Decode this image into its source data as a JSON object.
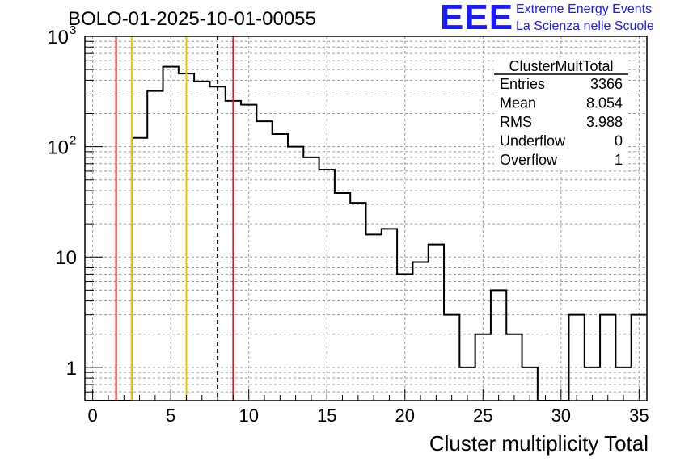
{
  "header": {
    "run_title": "BOLO-01-2025-10-01-00055",
    "logo_text": "EEE",
    "logo_line1": "Extreme Energy Events",
    "logo_line2": "La Scienza nelle Scuole"
  },
  "colors": {
    "histogram": "#000000",
    "red_line": "#e41a1c",
    "yellow_line": "#f5c400",
    "mean_line": "#000000",
    "grid": "#9a9a9a",
    "logo": "#1a1aff"
  },
  "chart_data": {
    "type": "bar",
    "title": "",
    "xlabel": "Cluster multiplicity Total",
    "ylabel": "",
    "log_y": true,
    "grid": true,
    "legend_placement": "top-right",
    "xlim": [
      -0.5,
      35.5
    ],
    "ylim": [
      0.5,
      1000
    ],
    "x_ticks": [
      0,
      5,
      10,
      15,
      20,
      25,
      30,
      35
    ],
    "y_ticks": [
      {
        "value": 1,
        "label": "1"
      },
      {
        "value": 10,
        "label": "10"
      },
      {
        "value": 100,
        "label": "10",
        "sup": "2"
      },
      {
        "value": 1000,
        "label": "10",
        "sup": "3"
      }
    ],
    "bin_width": 1,
    "bin_starts": [
      -0.5,
      0.5,
      1.5,
      2.5,
      3.5,
      4.5,
      5.5,
      6.5,
      7.5,
      8.5,
      9.5,
      10.5,
      11.5,
      12.5,
      13.5,
      14.5,
      15.5,
      16.5,
      17.5,
      18.5,
      19.5,
      20.5,
      21.5,
      22.5,
      23.5,
      24.5,
      25.5,
      26.5,
      27.5,
      28.5,
      29.5,
      30.5,
      31.5,
      32.5,
      33.5,
      34.5
    ],
    "values": [
      0,
      0,
      0,
      120,
      320,
      530,
      460,
      390,
      350,
      260,
      240,
      170,
      130,
      100,
      80,
      62,
      38,
      31,
      16,
      18,
      7,
      9,
      13,
      3,
      1,
      2,
      5,
      2,
      1,
      0,
      0,
      3,
      1,
      3,
      1,
      3
    ],
    "vertical_lines": [
      {
        "x": 1.5,
        "color": "red",
        "style": "solid"
      },
      {
        "x": 2.5,
        "color": "yellow",
        "style": "solid"
      },
      {
        "x": 6.0,
        "color": "yellow",
        "style": "solid"
      },
      {
        "x": 8.0,
        "color": "black",
        "style": "dashed"
      },
      {
        "x": 9.0,
        "color": "red",
        "style": "solid"
      }
    ],
    "stats_box": {
      "name": "ClusterMultTotal",
      "rows": [
        {
          "label": "Entries",
          "value": "3366"
        },
        {
          "label": "Mean",
          "value": "8.054"
        },
        {
          "label": "RMS",
          "value": "3.988"
        },
        {
          "label": "Underflow",
          "value": "0"
        },
        {
          "label": "Overflow",
          "value": "1"
        }
      ]
    }
  }
}
